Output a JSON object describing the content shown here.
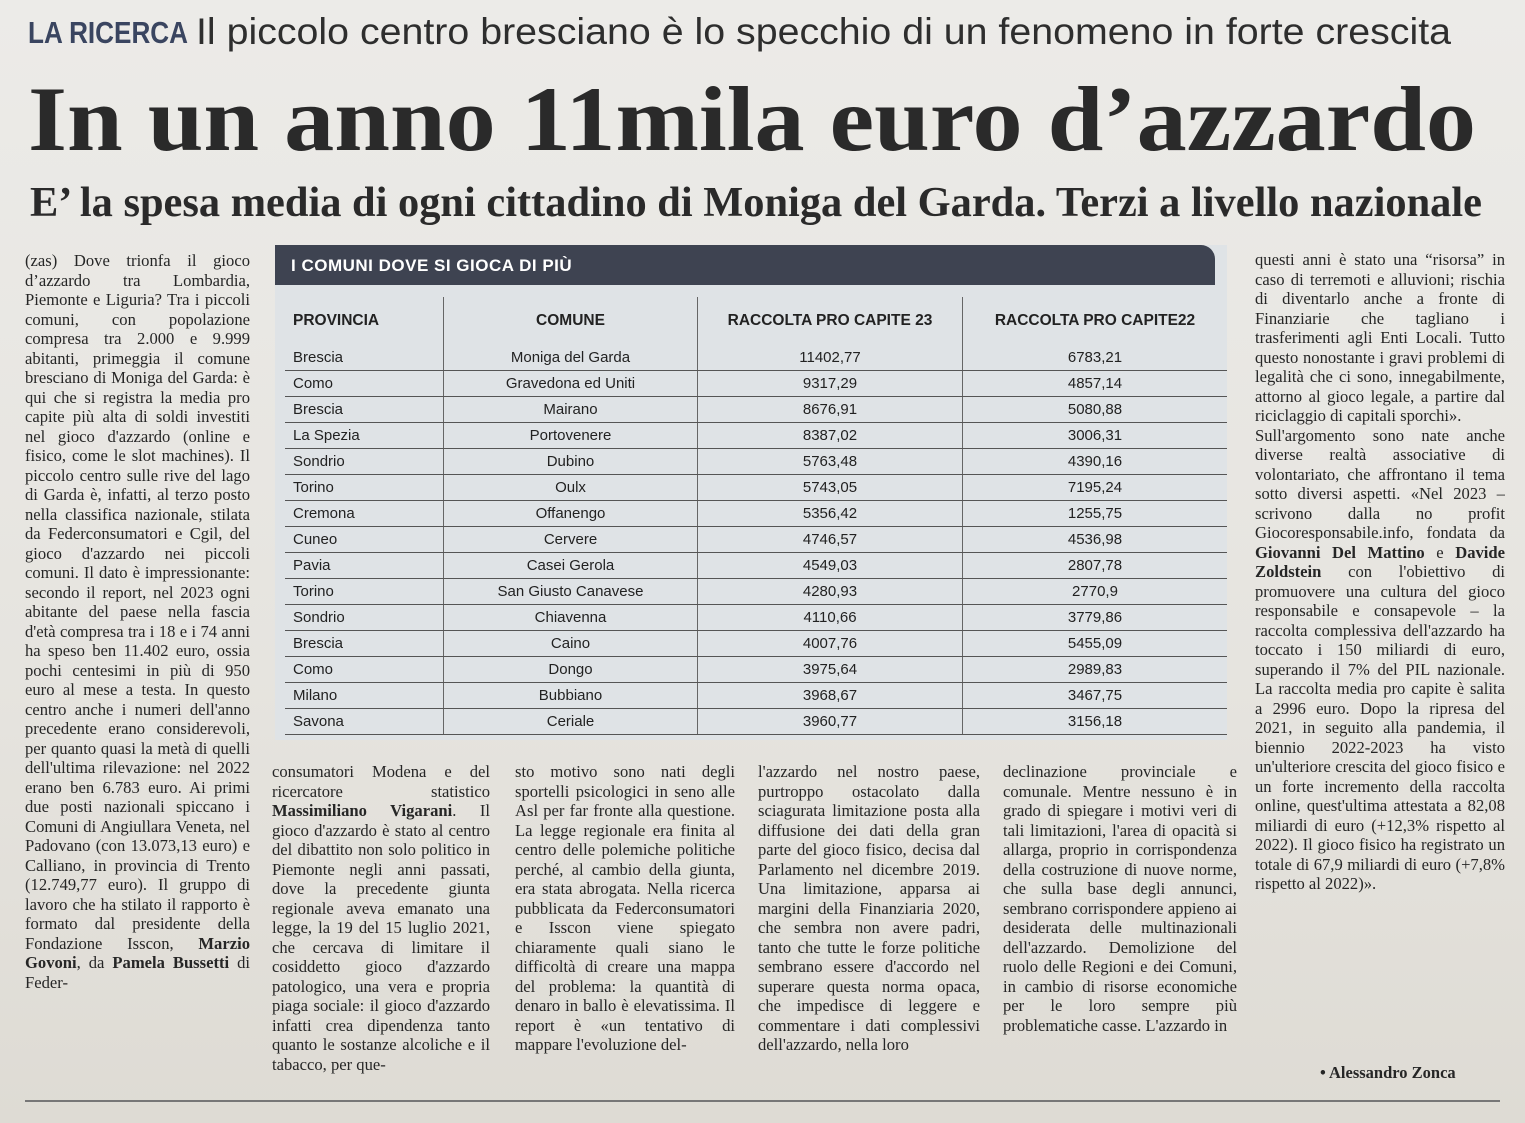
{
  "header": {
    "kicker": "LA RICERCA",
    "overline": "Il piccolo centro bresciano è lo specchio di un fenomeno in forte crescita",
    "title": "In un anno 11mila euro d’azzardo",
    "subtitle": "E’ la spesa media di ogni cittadino di Moniga del Garda. Terzi a livello nazionale"
  },
  "table": {
    "title": "I COMUNI DOVE SI GIOCA DI PIÙ",
    "columns": [
      "PROVINCIA",
      "COMUNE",
      "RACCOLTA PRO CAPITE 23",
      "RACCOLTA PRO CAPITE22"
    ],
    "rows": [
      [
        "Brescia",
        "Moniga del Garda",
        "11402,77",
        "6783,21"
      ],
      [
        "Como",
        "Gravedona ed Uniti",
        "9317,29",
        "4857,14"
      ],
      [
        "Brescia",
        "Mairano",
        "8676,91",
        "5080,88"
      ],
      [
        "La Spezia",
        "Portovenere",
        "8387,02",
        "3006,31"
      ],
      [
        "Sondrio",
        "Dubino",
        "5763,48",
        "4390,16"
      ],
      [
        "Torino",
        "Oulx",
        "5743,05",
        "7195,24"
      ],
      [
        "Cremona",
        "Offanengo",
        "5356,42",
        "1255,75"
      ],
      [
        "Cuneo",
        "Cervere",
        "4746,57",
        "4536,98"
      ],
      [
        "Pavia",
        "Casei Gerola",
        "4549,03",
        "2807,78"
      ],
      [
        "Torino",
        "San Giusto Canavese",
        "4280,93",
        "2770,9"
      ],
      [
        "Sondrio",
        "Chiavenna",
        "4110,66",
        "3779,86"
      ],
      [
        "Brescia",
        "Caino",
        "4007,76",
        "5455,09"
      ],
      [
        "Como",
        "Dongo",
        "3975,64",
        "2989,83"
      ],
      [
        "Milano",
        "Bubbiano",
        "3968,67",
        "3467,75"
      ],
      [
        "Savona",
        "Ceriale",
        "3960,77",
        "3156,18"
      ]
    ]
  },
  "body": {
    "columns": [
      [
        [
          "(zas) Dove trionfa il gioco d’azzardo tra Lombardia, Piemonte e Liguria? Tra i piccoli comuni, con popolazione compresa tra 2.000 e 9.999 abitanti, primeggia il comune bresciano di Moniga del Garda: è qui che si registra la media pro capite più alta di soldi investiti nel gioco d'azzardo (online e fisico, come le slot machines). Il piccolo centro sulle rive del lago di Garda è, infatti, al terzo posto nella classifica nazionale, stilata da Federconsumatori e Cgil, del gioco d'azzardo nei piccoli comuni. Il dato è impressionante: secondo il report, nel 2023 ogni abitante del paese nella fascia d'età compresa tra i 18 e i 74 anni ha speso ben 11.402 euro, ossia pochi centesimi in più di 950 euro al mese a testa. In questo centro anche i numeri dell'anno precedente erano considerevoli, per quanto quasi la metà di quelli dell'ultima rilevazione: nel 2022 erano ben 6.783 euro. Ai primi due posti nazionali spiccano i Comuni di Angiullara Veneta, nel Padovano (con 13.073,13 euro) e Calliano, in provincia di Trento (12.749,77 euro). Il gruppo di lavoro che ha stilato il rapporto è formato dal presidente della Fondazione Isscon, ",
          {
            "text": "Marzio Govoni",
            "style": "bold"
          },
          ", da ",
          {
            "text": "Pamela Bussetti",
            "style": "bold"
          },
          " di Feder-"
        ]
      ],
      [
        [
          "consumatori Modena e del ricercatore statistico ",
          {
            "text": "Massimiliano Vigarani",
            "style": "bold"
          },
          ". Il gioco d'azzardo è stato al centro del dibattito non solo politico in Piemonte negli anni passati, dove la precedente giunta regionale aveva emanato una legge, la 19 del 15 luglio 2021, che cercava di limitare il cosiddetto gioco d'azzardo patologico, una vera e propria piaga sociale: il gioco d'azzardo infatti crea dipendenza tanto quanto le sostanze alcoliche e il tabacco, per que-"
        ]
      ],
      [
        [
          "sto motivo sono nati degli sportelli psicologici in seno alle Asl per far fronte alla questione. La legge regionale era finita al centro delle polemiche politiche perché, al cambio della giunta, era stata abrogata. Nella ricerca pubblicata da Federconsumatori e Isscon viene spiegato chiaramente quali siano le difficoltà di creare una mappa del problema: la quantità di denaro in ballo è elevatissima. Il report è «un tentativo di mappare l'evoluzione del-"
        ]
      ],
      [
        [
          "l'azzardo nel nostro paese, purtroppo ostacolato dalla sciagurata limitazione posta alla diffusione dei dati della gran parte del gioco fisico, decisa dal Parlamento nel dicembre 2019. Una limitazione, apparsa ai margini della Finanziaria 2020, che sembra non avere padri, tanto che tutte le forze politiche sembrano essere d'accordo nel superare questa norma opaca, che impedisce di leggere e commentare i dati complessivi dell'azzardo, nella loro"
        ]
      ],
      [
        [
          "declinazione provinciale e comunale. Mentre nessuno è in grado di spiegare i motivi veri di tali limitazioni, l'area di opacità si allarga, proprio in corrispondenza della costruzione di nuove norme, che sulla base degli annunci, sembrano corrispondere appieno ai desiderata delle multinazionali dell'azzardo. Demolizione del ruolo delle Regioni e dei Comuni, in cambio di risorse economiche per le loro sempre più problematiche casse. L'azzardo in"
        ]
      ],
      [
        [
          "questi anni è stato una “risorsa” in caso di terremoti e alluvioni; rischia di diventarlo anche a fronte di Finanziarie che tagliano i trasferimenti agli Enti Locali. Tutto questo nonostante i gravi problemi di legalità che ci sono, innegabilmente, attorno al gioco legale, a partire dal riciclaggio di capitali sporchi»."
        ],
        [
          "Sull'argomento sono nate anche diverse realtà associative di volontariato, che affrontano il tema sotto diversi aspetti. «Nel 2023 – scrivono dalla no profit Giocoresponsabile.info, fondata da ",
          {
            "text": "Giovanni Del Mattino",
            "style": "bold"
          },
          " e ",
          {
            "text": "Davide Zoldstein",
            "style": "bold"
          },
          " con l'obiettivo di promuovere una cultura del gioco responsabile e consapevole – la raccolta complessiva dell'azzardo ha toccato i 150 miliardi di euro, superando il 7% del PIL nazionale. La raccolta media pro capite è salita a 2996 euro. Dopo la ripresa del 2021, in seguito alla pandemia, il biennio 2022-2023 ha visto un'ulteriore crescita del gioco fisico e un forte incremento della raccolta online, quest'ultima attestata a 82,08 miliardi di euro (+12,3% rispetto al 2022). Il gioco fisico ha registrato un totale di 67,9 miliardi di euro (+7,8% rispetto al 2022)»."
        ]
      ]
    ],
    "signature": "• Alessandro Zonca"
  }
}
